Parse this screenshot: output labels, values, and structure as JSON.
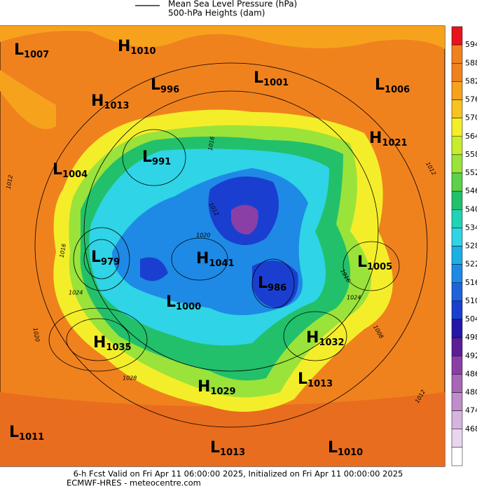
{
  "legend": {
    "line_label": "Mean Sea Level Pressure (hPa)",
    "fill_label": "500-hPa Heights (dam)"
  },
  "colorbar": {
    "ticks": [
      594,
      588,
      582,
      576,
      570,
      564,
      558,
      552,
      546,
      540,
      534,
      528,
      522,
      516,
      510,
      504,
      498,
      492,
      486,
      480,
      474,
      468
    ]
  },
  "centers": [
    {
      "letter": "L",
      "value": "1007"
    },
    {
      "letter": "H",
      "value": "1010"
    },
    {
      "letter": "L",
      "value": "996"
    },
    {
      "letter": "L",
      "value": "1001"
    },
    {
      "letter": "L",
      "value": "1006"
    },
    {
      "letter": "H",
      "value": "1013"
    },
    {
      "letter": "H",
      "value": "1021"
    },
    {
      "letter": "L",
      "value": "991"
    },
    {
      "letter": "L",
      "value": "1004"
    },
    {
      "letter": "L",
      "value": "979"
    },
    {
      "letter": "H",
      "value": "1041"
    },
    {
      "letter": "L",
      "value": "1005"
    },
    {
      "letter": "L",
      "value": "986"
    },
    {
      "letter": "L",
      "value": "1000"
    },
    {
      "letter": "H",
      "value": "1032"
    },
    {
      "letter": "H",
      "value": "1035"
    },
    {
      "letter": "H",
      "value": "1029"
    },
    {
      "letter": "L",
      "value": "1013"
    },
    {
      "letter": "L",
      "value": "1011"
    },
    {
      "letter": "L",
      "value": "1013"
    },
    {
      "letter": "L",
      "value": "1010"
    }
  ],
  "contour_labels": [
    "1012",
    "1016",
    "1024",
    "1020",
    "1028",
    "1016",
    "1024",
    "1012",
    "1008",
    "1012",
    "1016",
    "1020",
    "1012"
  ],
  "footer": {
    "line1": "6-h Fcst Valid on Fri Apr 11 06:00:00 2025, Initialized on Fri Apr 11 00:00:00 2025",
    "line2": "ECMWF-HRES  - meteocentre.com"
  }
}
